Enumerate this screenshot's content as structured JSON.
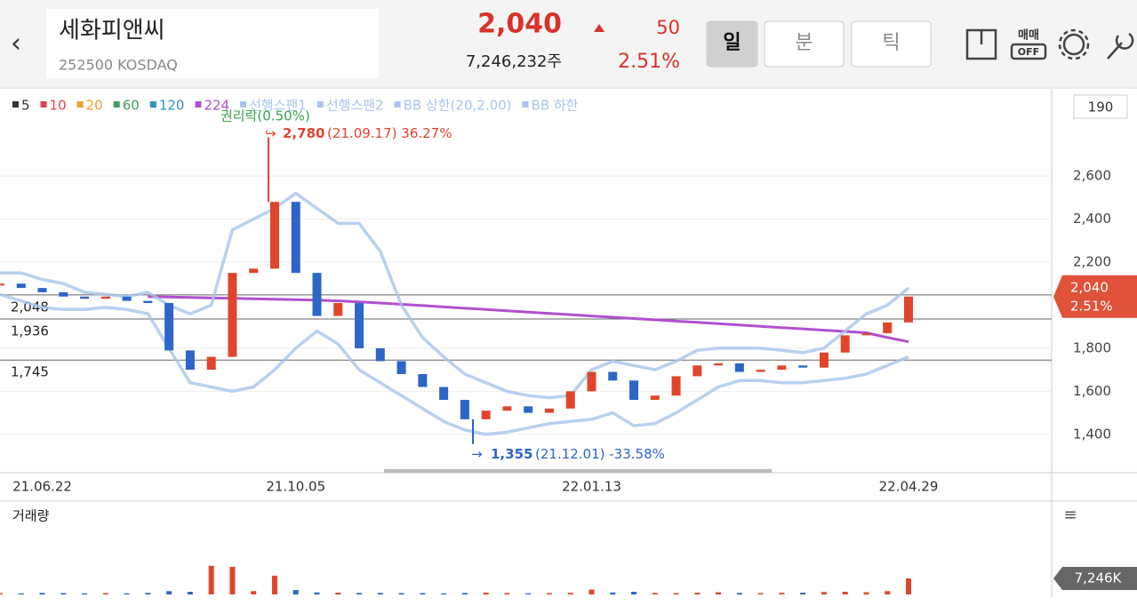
{
  "header": {
    "name": "세화피앤씨",
    "code": "252500 KOSDAQ",
    "price": "2,040",
    "change": "50",
    "volume": "7,246,232주",
    "change_pct": "2.51%",
    "tabs": [
      "일",
      "분",
      "틱"
    ],
    "trade_toggle": [
      "매매",
      "OFF"
    ]
  },
  "chart": {
    "type": "candlestick",
    "legend": [
      {
        "name": "5",
        "color": "#333333"
      },
      {
        "name": "10",
        "color": "#e04050"
      },
      {
        "name": "20",
        "color": "#f0a030"
      },
      {
        "name": "60",
        "color": "#40a060"
      },
      {
        "name": "120",
        "color": "#3090c0"
      },
      {
        "name": "224",
        "color": "#b050d0"
      },
      {
        "name": "선행스팬1",
        "color": "#a8c4ec"
      },
      {
        "name": "선행스팬2",
        "color": "#a8c4ec"
      },
      {
        "name": "BB 상한(20,2.00)",
        "color": "#a8c4ec"
      },
      {
        "name": "BB 하한",
        "color": "#a8c4ec"
      }
    ],
    "period_box": "190",
    "x": [
      null,
      null,
      "21.06.22",
      null,
      null,
      null,
      null,
      null,
      null,
      null,
      null,
      null,
      null,
      null,
      "21.10.05",
      null,
      null,
      null,
      null,
      null,
      null,
      null,
      null,
      null,
      null,
      null,
      null,
      null,
      "22.01.13",
      null,
      null,
      null,
      null,
      null,
      null,
      null,
      null,
      null,
      null,
      null,
      null,
      null,
      null,
      "22.04.29"
    ],
    "close": [
      2100,
      2080,
      2060,
      2040,
      2030,
      2040,
      2020,
      2010,
      1790,
      1700,
      1760,
      2150,
      2170,
      2480,
      2150,
      1950,
      2010,
      1800,
      1740,
      1680,
      1620,
      1560,
      1470,
      1510,
      1530,
      1500,
      1520,
      1600,
      1690,
      1650,
      1560,
      1580,
      1670,
      1720,
      1730,
      1690,
      1700,
      1720,
      1710,
      1780,
      1860,
      1870,
      1920,
      2040
    ],
    "up_color": "#e0452c",
    "down_color": "#2c66c8",
    "series": [
      {
        "name": "224",
        "color": "#b050d0",
        "values": [
          null,
          null,
          null,
          null,
          null,
          null,
          null,
          2040,
          2038,
          2036,
          2034,
          2032,
          2030,
          2028,
          2026,
          2024,
          2020,
          2015,
          2010,
          2004,
          1998,
          1992,
          1986,
          1980,
          1974,
          1968,
          1962,
          1956,
          1950,
          1944,
          1938,
          1932,
          1926,
          1920,
          1914,
          1908,
          1902,
          1896,
          1890,
          1884,
          1878,
          1872,
          1850,
          1830
        ]
      },
      {
        "name": "BB 상한(20,2.00)",
        "color": "#a8c4ec",
        "values": [
          2150,
          2150,
          2120,
          2100,
          2060,
          2050,
          2040,
          2060,
          2000,
          1960,
          2000,
          2350,
          2400,
          2450,
          2520,
          2450,
          2380,
          2380,
          2250,
          2000,
          1850,
          1760,
          1680,
          1640,
          1600,
          1580,
          1570,
          1580,
          1700,
          1740,
          1720,
          1700,
          1740,
          1790,
          1800,
          1800,
          1800,
          1790,
          1780,
          1800,
          1880,
          1960,
          2000,
          2080
        ]
      },
      {
        "name": "BB 하한",
        "color": "#a8c4ec",
        "values": [
          2050,
          2020,
          1990,
          1980,
          1980,
          1990,
          1980,
          1960,
          1800,
          1640,
          1620,
          1600,
          1620,
          1700,
          1800,
          1880,
          1820,
          1700,
          1640,
          1580,
          1520,
          1460,
          1420,
          1400,
          1410,
          1430,
          1450,
          1460,
          1470,
          1500,
          1440,
          1450,
          1500,
          1560,
          1620,
          1650,
          1650,
          1640,
          1640,
          1650,
          1660,
          1680,
          1720,
          1760
        ]
      }
    ],
    "ylim": [
      1230,
      3005
    ],
    "yticks": [
      {
        "value": 1400,
        "label": "1,400"
      },
      {
        "value": 1600,
        "label": "1,600"
      },
      {
        "value": 1800,
        "label": "1,800"
      },
      {
        "value": 2200,
        "label": "2,200"
      },
      {
        "value": 2400,
        "label": "2,400"
      },
      {
        "value": 2600,
        "label": "2,600"
      }
    ],
    "levels": [
      {
        "value": 2048,
        "label": "2,048"
      },
      {
        "value": 1936,
        "label": "1,936"
      },
      {
        "value": 1745,
        "label": "1,745"
      }
    ],
    "rights_note": "권리락(0.50%)",
    "high": {
      "value": 2780,
      "label": "2,780",
      "note": "(21.09.17) 36.27%"
    },
    "low": {
      "value": 1355,
      "label": "1,355",
      "note": "(21.12.01) -33.58%"
    },
    "last_tag": {
      "value": 2040,
      "label": "2,040",
      "change": "2.51%"
    }
  },
  "volume": {
    "title": "거래량",
    "ylim": [
      0,
      41500
    ],
    "values": [
      600,
      500,
      700,
      600,
      500,
      600,
      500,
      700,
      1500,
      1200,
      13000,
      12500,
      1500,
      8500,
      2000,
      900,
      800,
      700,
      700,
      600,
      600,
      500,
      700,
      800,
      600,
      500,
      600,
      700,
      2200,
      900,
      1200,
      700,
      600,
      800,
      1000,
      700,
      600,
      700,
      800,
      1100,
      1200,
      1000,
      1500,
      7246
    ],
    "current": {
      "value": 7246,
      "label": "7,246K"
    }
  }
}
